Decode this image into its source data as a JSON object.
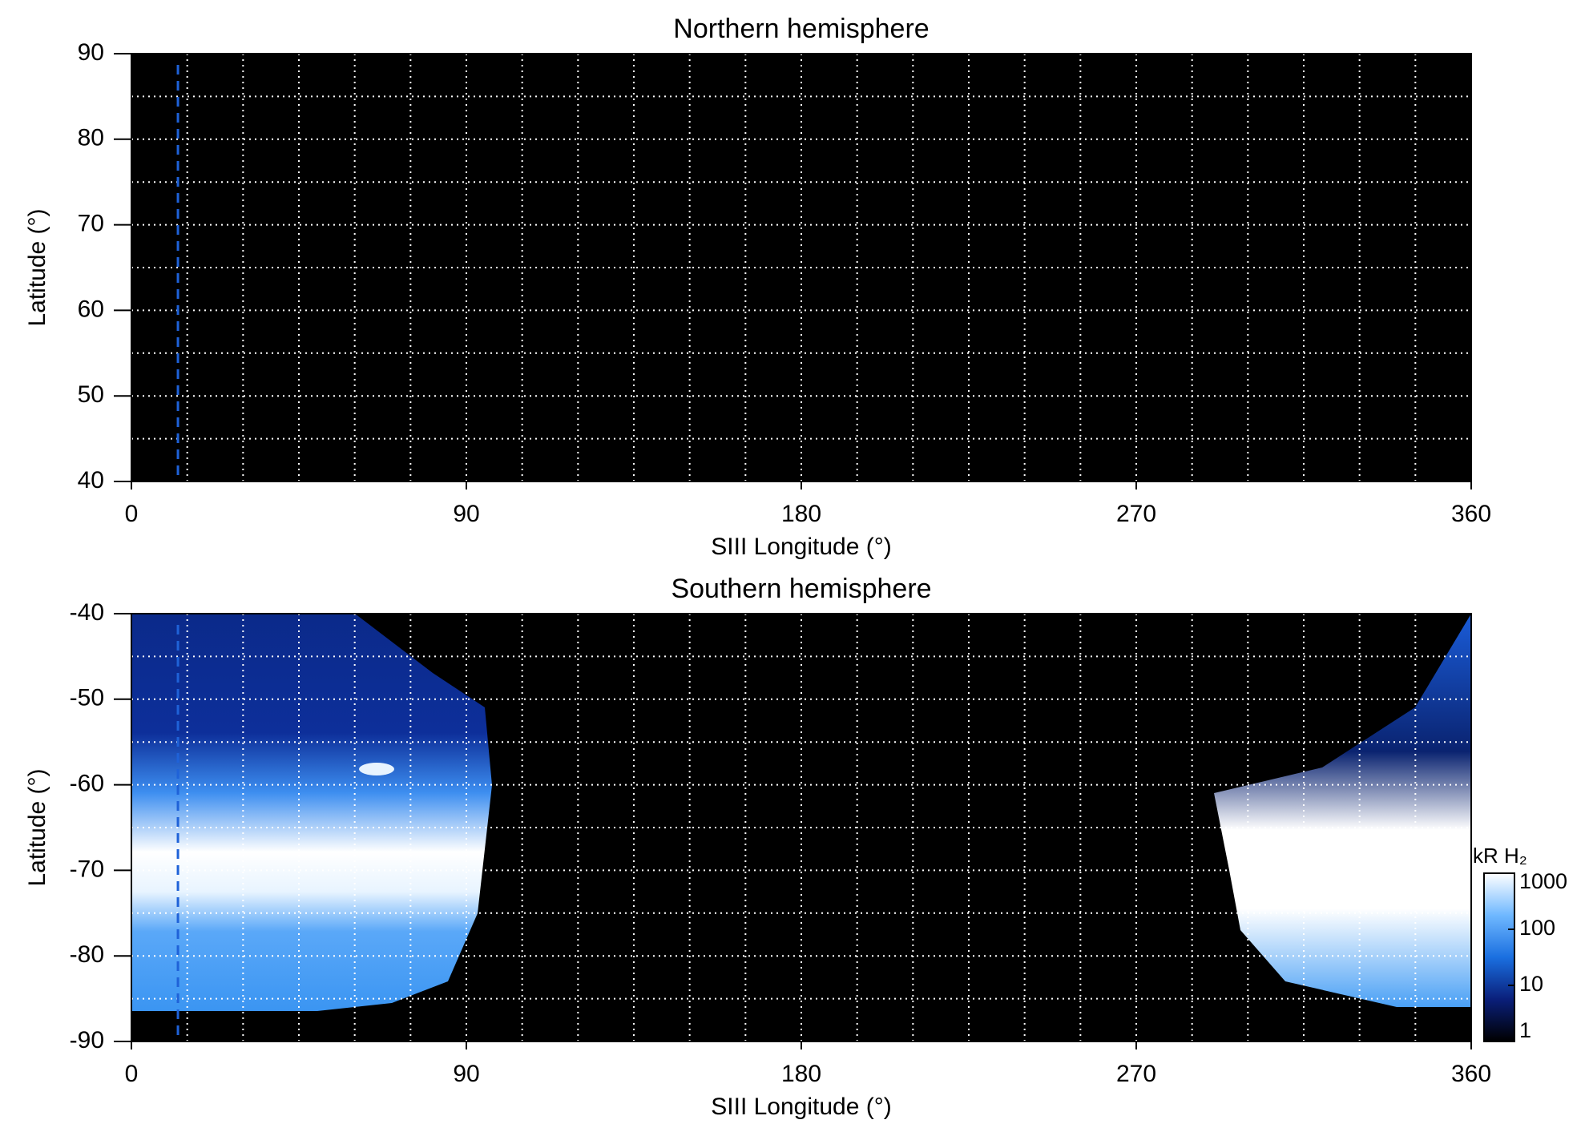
{
  "chart_data": [
    {
      "type": "image",
      "title": "Northern hemisphere",
      "x_label": "SIII Longitude (°)",
      "y_label": "Latitude (°)",
      "xlim": [
        0,
        360
      ],
      "xticks": [
        0,
        90,
        180,
        270,
        360
      ],
      "ylim": [
        40,
        90
      ],
      "yticks": [
        40,
        50,
        60,
        70,
        80,
        90
      ],
      "xgrid": [
        15,
        30,
        45,
        60,
        75,
        90,
        105,
        120,
        135,
        150,
        165,
        180,
        195,
        210,
        225,
        240,
        255,
        270,
        285,
        300,
        315,
        330,
        345
      ],
      "ygrid": [
        45,
        50,
        55,
        60,
        65,
        70,
        75,
        80,
        85
      ],
      "marker_longitude": 12.5,
      "marker_color": "#1f62d8",
      "background": "#000000",
      "grid_color": "#ffffff"
    },
    {
      "type": "image",
      "title": "Southern hemisphere",
      "x_label": "SIII Longitude (°)",
      "y_label": "Latitude (°)",
      "xlim": [
        0,
        360
      ],
      "xticks": [
        0,
        90,
        180,
        270,
        360
      ],
      "ylim": [
        -90,
        -40
      ],
      "yticks": [
        -90,
        -80,
        -70,
        -60,
        -50,
        -40
      ],
      "xgrid": [
        15,
        30,
        45,
        60,
        75,
        90,
        105,
        120,
        135,
        150,
        165,
        180,
        195,
        210,
        225,
        240,
        255,
        270,
        285,
        300,
        315,
        330,
        345
      ],
      "ygrid": [
        -85,
        -80,
        -75,
        -70,
        -65,
        -60,
        -55,
        -50,
        -45
      ],
      "marker_longitude": 12.5,
      "marker_color": "#1f62d8",
      "background": "#000000",
      "grid_color": "#ffffff",
      "colorbar": {
        "label": "kR H₂",
        "lim": [
          1,
          1000
        ],
        "ticks": [
          1,
          10,
          100,
          1000
        ],
        "log": true,
        "colors": [
          "#000000",
          "#0a1f7a",
          "#1a6fe0",
          "#6fb8ff",
          "#ffffff"
        ]
      }
    }
  ]
}
